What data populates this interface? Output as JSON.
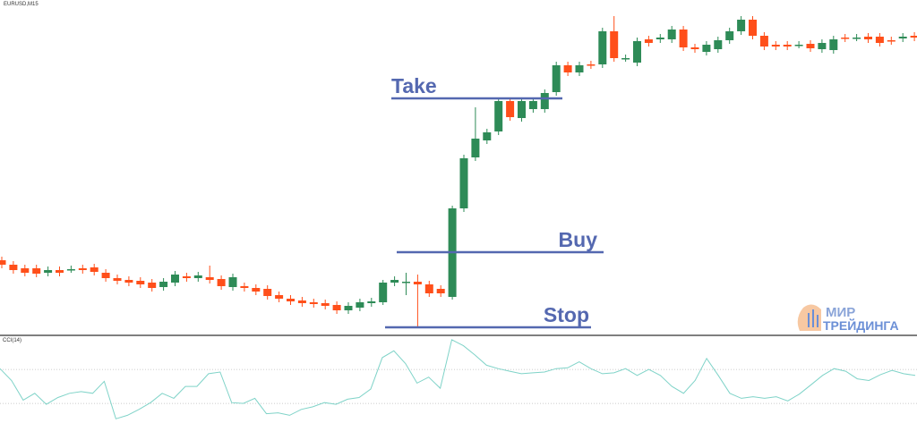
{
  "chart_data": [
    {
      "type": "candlestick",
      "title": "EURUSD,M15",
      "open": [
        82,
        77,
        73,
        73,
        68,
        71,
        72,
        73,
        74,
        68,
        62,
        60,
        59,
        57,
        52,
        57,
        64,
        62,
        63,
        61,
        52,
        53,
        51,
        50,
        43,
        39,
        37,
        35,
        34,
        32,
        26,
        29,
        34,
        35,
        57,
        58,
        58,
        55,
        50,
        41,
        140,
        197,
        216,
        226,
        260,
        241,
        251,
        251,
        270,
        300,
        292,
        301,
        301,
        338,
        308,
        303,
        329,
        329,
        329,
        340,
        320,
        315,
        318,
        328,
        338,
        351,
        333,
        323,
        323,
        323,
        324,
        318,
        317,
        331,
        331,
        332,
        332,
        328,
        330,
        333
      ],
      "close": [
        77,
        71,
        68,
        67,
        71,
        68,
        72,
        71,
        69,
        62,
        59,
        57,
        55,
        51,
        58,
        66,
        62,
        65,
        60,
        53,
        63,
        51,
        47,
        42,
        39,
        36,
        34,
        33,
        31,
        26,
        31,
        35,
        36,
        57,
        60,
        58,
        55,
        45,
        45,
        140,
        196,
        218,
        225,
        260,
        242,
        260,
        260,
        269,
        300,
        292,
        300,
        300,
        338,
        308,
        308,
        327,
        325,
        331,
        340,
        320,
        318,
        323,
        328,
        338,
        351,
        333,
        321,
        321,
        321,
        323,
        319,
        325,
        329,
        330,
        331,
        329,
        325,
        327,
        332,
        331
      ],
      "high": [
        86,
        81,
        77,
        77,
        75,
        75,
        76,
        77,
        78,
        72,
        66,
        64,
        63,
        61,
        62,
        70,
        68,
        69,
        76,
        65,
        67,
        57,
        55,
        54,
        47,
        43,
        41,
        39,
        38,
        36,
        35,
        39,
        40,
        60,
        64,
        68,
        66,
        59,
        54,
        143,
        200,
        253,
        229,
        263,
        264,
        264,
        264,
        273,
        304,
        304,
        304,
        305,
        342,
        355,
        312,
        331,
        333,
        335,
        344,
        344,
        324,
        327,
        332,
        342,
        355,
        355,
        337,
        327,
        327,
        327,
        328,
        329,
        333,
        335,
        335,
        336,
        336,
        332,
        336,
        337
      ],
      "low": [
        73,
        67,
        64,
        63,
        64,
        64,
        68,
        67,
        65,
        58,
        55,
        53,
        51,
        47,
        48,
        53,
        58,
        58,
        56,
        49,
        48,
        47,
        43,
        38,
        35,
        32,
        30,
        29,
        27,
        22,
        22,
        25,
        30,
        32,
        53,
        43,
        8,
        41,
        41,
        38,
        136,
        193,
        212,
        222,
        238,
        237,
        247,
        247,
        266,
        288,
        288,
        296,
        297,
        304,
        304,
        299,
        321,
        325,
        325,
        316,
        314,
        311,
        314,
        324,
        334,
        329,
        317,
        317,
        317,
        319,
        315,
        314,
        313,
        326,
        327,
        325,
        321,
        323,
        326,
        327
      ],
      "up_color": "#2e8b57",
      "down_color": "#ff4f1a",
      "ylim": [
        0,
        373
      ],
      "lines": [
        {
          "label": "Take",
          "value": 263
        },
        {
          "label": "Buy",
          "value": 91
        },
        {
          "label": "Stop",
          "value": 7
        }
      ],
      "line_color": "#5468b0"
    },
    {
      "type": "line",
      "title": "CCI(14)",
      "values": [
        105,
        35,
        -80,
        -40,
        -105,
        -65,
        -40,
        -30,
        -40,
        30,
        -190,
        -170,
        -135,
        -95,
        -40,
        -70,
        0,
        0,
        75,
        85,
        -95,
        -100,
        -70,
        -160,
        -155,
        -170,
        -135,
        -120,
        -95,
        -105,
        -75,
        -65,
        -15,
        170,
        210,
        135,
        20,
        55,
        -10,
        275,
        240,
        185,
        125,
        105,
        90,
        75,
        80,
        85,
        105,
        110,
        145,
        105,
        75,
        80,
        105,
        65,
        100,
        65,
        0,
        -40,
        35,
        165,
        65,
        -40,
        -70,
        -60,
        -70,
        -60,
        -85,
        -45,
        10,
        65,
        105,
        90,
        45,
        35,
        70,
        95,
        75,
        65
      ],
      "color": "#7fd3c8",
      "ylim": [
        -215,
        285
      ],
      "levels": [
        100,
        -100
      ]
    }
  ],
  "logo": {
    "line1": "МИР",
    "line2": "ТРЕЙДИНГА"
  }
}
